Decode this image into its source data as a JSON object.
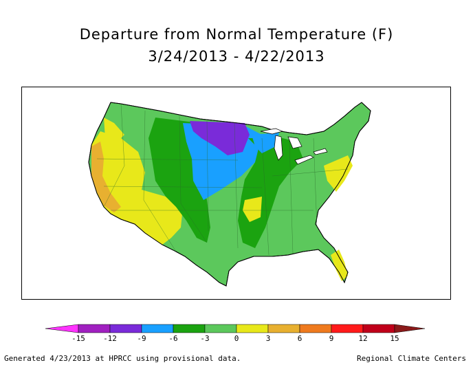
{
  "title": {
    "line1": "Departure from Normal Temperature (F)",
    "line2": "3/24/2013 - 4/22/2013"
  },
  "legend": {
    "ticks": [
      "-15",
      "-12",
      "-9",
      "-6",
      "-3",
      "0",
      "3",
      "6",
      "9",
      "12",
      "15"
    ],
    "colors": [
      "#ff33ff",
      "#a020c0",
      "#7a2bd9",
      "#19a0ff",
      "#1ba310",
      "#5cc85c",
      "#e8e81a",
      "#e8b030",
      "#ef7a1e",
      "#ff1a1a",
      "#c0001a",
      "#8b1a1a"
    ]
  },
  "map": {
    "region_colors": {
      "strong_cold": "#a020c0",
      "cold_purple": "#7a2bd9",
      "cold_blue": "#19a0ff",
      "cool_green": "#1ba310",
      "slight_cool": "#5cc85c",
      "normal_warm": "#e8e81a",
      "warm": "#e8b030",
      "border": "#000000"
    }
  },
  "footer": {
    "left": "Generated 4/23/2013 at HPRCC using provisional data.",
    "right": "Regional Climate Centers"
  }
}
